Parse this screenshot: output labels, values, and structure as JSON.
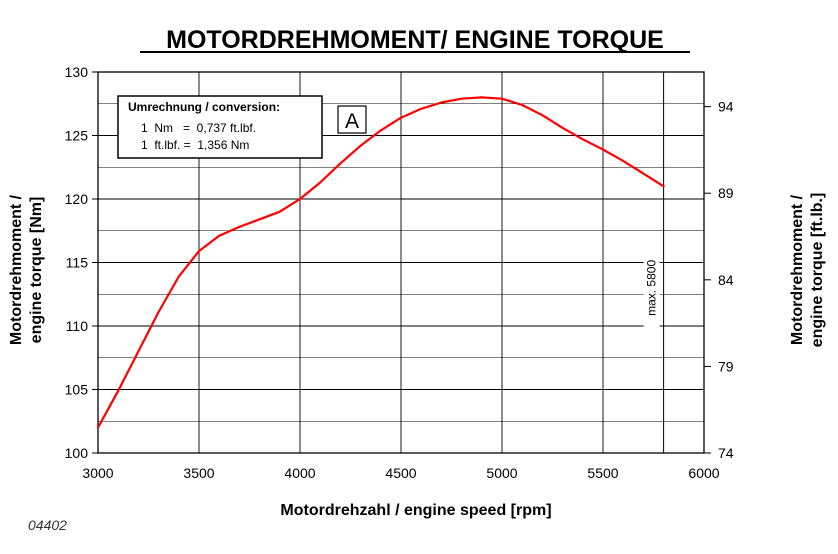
{
  "chart_data": {
    "type": "line",
    "title": "MOTORDREHMOMENT/ ENGINE TORQUE",
    "xlabel": "Motordrehzahl / engine speed [rpm]",
    "ylabel_left": [
      "Motordrehmoment /",
      "engine torque [Nm]"
    ],
    "ylabel_right": [
      "Motordrehmoment /",
      "engine torque [ft.lb.]"
    ],
    "xlim": [
      3000,
      6000
    ],
    "ylim": [
      100,
      130
    ],
    "ylim_right": [
      74,
      96
    ],
    "x_ticks": [
      3000,
      3500,
      4000,
      4500,
      5000,
      5500,
      6000
    ],
    "y_ticks_left": [
      100,
      105,
      110,
      115,
      120,
      125,
      130
    ],
    "y_ticks_right": [
      74,
      79,
      84,
      89,
      94
    ],
    "grid": true,
    "series": [
      {
        "color": "#ff0000",
        "x": [
          3000,
          3100,
          3200,
          3300,
          3400,
          3500,
          3600,
          3700,
          3800,
          3900,
          4000,
          4100,
          4200,
          4300,
          4400,
          4500,
          4600,
          4700,
          4800,
          4900,
          5000,
          5100,
          5200,
          5300,
          5400,
          5500,
          5600,
          5700,
          5800
        ],
        "y": [
          102.0,
          104.9,
          108.0,
          111.1,
          113.9,
          115.9,
          117.1,
          117.8,
          118.4,
          119.0,
          120.0,
          121.3,
          122.8,
          124.2,
          125.4,
          126.4,
          127.1,
          127.6,
          127.9,
          128.0,
          127.9,
          127.4,
          126.6,
          125.6,
          124.7,
          123.9,
          123.0,
          122.0,
          121.0
        ]
      }
    ],
    "annotations": {
      "box_title": "Umrechnung / conversion:",
      "box_line1": "1  Nm   =  0,737 ft.lbf.",
      "box_line2": "1  ft.lbf. =  1,356 Nm",
      "marker": "A",
      "vline_x": 5800,
      "vline_label": "max. 5800"
    }
  },
  "figure_code": "04402"
}
